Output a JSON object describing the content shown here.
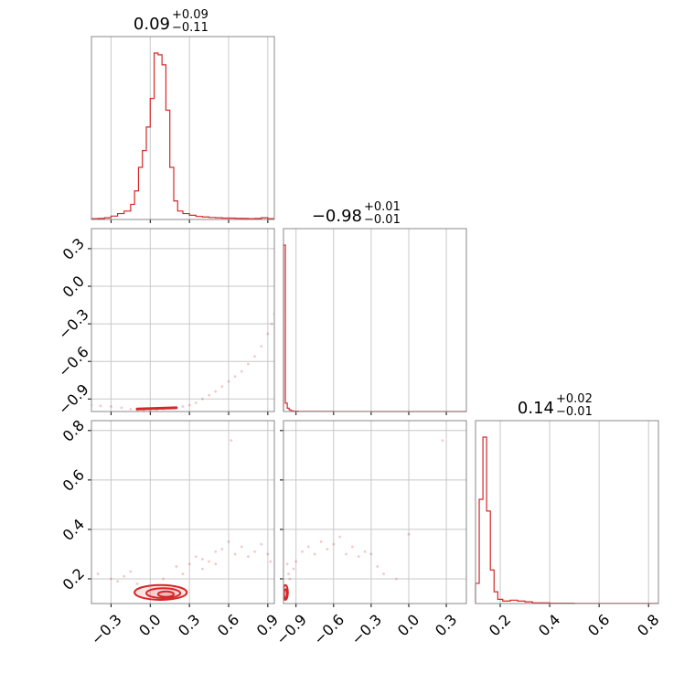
{
  "chart_data": {
    "type": "corner",
    "color": "#d62728",
    "grid": true,
    "parameters": [
      {
        "median": "0.09",
        "plus": "+0.09",
        "minus": "−0.11",
        "range": [
          -0.45,
          0.95
        ],
        "ticks": [
          -0.3,
          0.0,
          0.3,
          0.6,
          0.9
        ],
        "tick_labels": [
          "−0.3",
          "0.0",
          "0.3",
          "0.6",
          "0.9"
        ]
      },
      {
        "median": "−0.98",
        "plus": "+0.01",
        "minus": "−0.01",
        "range": [
          -1.0,
          0.46
        ],
        "ticks": [
          -0.9,
          -0.6,
          -0.3,
          0.0,
          0.3
        ],
        "tick_labels": [
          "−0.9",
          "−0.6",
          "−0.3",
          "0.0",
          "0.3"
        ]
      },
      {
        "median": "0.14",
        "plus": "+0.02",
        "minus": "−0.01",
        "range": [
          0.1,
          0.84
        ],
        "ticks": [
          0.2,
          0.4,
          0.6,
          0.8
        ],
        "tick_labels": [
          "0.2",
          "0.4",
          "0.6",
          "0.8"
        ]
      }
    ],
    "histograms": [
      {
        "param": 0,
        "bins": [
          -0.45,
          -0.4,
          -0.35,
          -0.3,
          -0.25,
          -0.2,
          -0.15,
          -0.12,
          -0.09,
          -0.06,
          -0.03,
          0.0,
          0.03,
          0.06,
          0.09,
          0.12,
          0.15,
          0.18,
          0.21,
          0.25,
          0.3,
          0.35,
          0.4,
          0.45,
          0.5,
          0.55,
          0.6,
          0.65,
          0.7,
          0.75,
          0.8,
          0.85,
          0.9,
          0.95
        ],
        "counts": [
          0.5,
          0.6,
          1.0,
          2.0,
          3.5,
          5.0,
          9.0,
          17.0,
          31.0,
          41.0,
          55.0,
          72.0,
          99.0,
          98.0,
          92.0,
          65.0,
          31.0,
          11.0,
          5.0,
          3.5,
          2.5,
          1.8,
          1.5,
          1.2,
          1.0,
          0.8,
          0.8,
          0.7,
          0.6,
          0.5,
          0.6,
          1.0,
          0.5
        ]
      },
      {
        "param": 1,
        "bins": [
          -1.0,
          -0.985,
          -0.97,
          -0.955,
          -0.94,
          -0.92,
          -0.88,
          -0.8,
          -0.6,
          -0.3,
          0.0,
          0.46
        ],
        "counts": [
          100,
          5,
          2,
          1,
          0.4,
          0.2,
          0.1,
          0.05,
          0.03,
          0.02,
          0.02
        ]
      },
      {
        "param": 2,
        "bins": [
          0.1,
          0.115,
          0.13,
          0.145,
          0.16,
          0.175,
          0.19,
          0.21,
          0.24,
          0.27,
          0.3,
          0.33,
          0.4,
          0.5,
          0.6,
          0.84
        ],
        "counts": [
          12,
          62,
          99,
          55,
          20,
          7,
          2.5,
          1.5,
          2.0,
          1.5,
          1.0,
          0.4,
          0.2,
          0.1,
          0.05
        ]
      }
    ],
    "scatter_panels": [
      {
        "x_param": 0,
        "y_param": 1,
        "description_free_points": [
          [
            -0.45,
            -0.95
          ],
          [
            -0.38,
            -0.955
          ],
          [
            -0.3,
            -0.96
          ],
          [
            -0.22,
            -0.97
          ],
          [
            -0.15,
            -0.98
          ],
          [
            -0.1,
            -0.985
          ],
          [
            -0.05,
            -0.99
          ],
          [
            0.0,
            -0.99
          ],
          [
            0.05,
            -0.985
          ],
          [
            0.1,
            -0.98
          ],
          [
            0.15,
            -0.975
          ],
          [
            0.2,
            -0.97
          ],
          [
            0.25,
            -0.96
          ],
          [
            0.3,
            -0.95
          ],
          [
            0.35,
            -0.93
          ],
          [
            0.4,
            -0.9
          ],
          [
            0.45,
            -0.87
          ],
          [
            0.5,
            -0.84
          ],
          [
            0.55,
            -0.8
          ],
          [
            0.6,
            -0.76
          ],
          [
            0.65,
            -0.72
          ],
          [
            0.7,
            -0.68
          ],
          [
            0.75,
            -0.62
          ],
          [
            0.8,
            -0.56
          ],
          [
            0.85,
            -0.48
          ],
          [
            0.9,
            -0.38
          ],
          [
            0.93,
            -0.3
          ],
          [
            0.95,
            -0.22
          ]
        ],
        "core_segment": [
          [
            -0.1,
            -0.98
          ],
          [
            0.2,
            -0.97
          ]
        ]
      },
      {
        "x_param": 0,
        "y_param": 2,
        "contours": [
          {
            "center": [
              0.08,
              0.145
            ],
            "rx": 0.2,
            "ry": 0.03
          },
          {
            "center": [
              0.1,
              0.142
            ],
            "rx": 0.13,
            "ry": 0.02
          },
          {
            "center": [
              0.12,
              0.138
            ],
            "rx": 0.06,
            "ry": 0.011
          }
        ],
        "scatter": [
          [
            -0.4,
            0.22
          ],
          [
            -0.3,
            0.2
          ],
          [
            -0.25,
            0.19
          ],
          [
            -0.2,
            0.21
          ],
          [
            -0.15,
            0.23
          ],
          [
            -0.1,
            0.18
          ],
          [
            0.2,
            0.25
          ],
          [
            0.25,
            0.22
          ],
          [
            0.3,
            0.26
          ],
          [
            0.35,
            0.29
          ],
          [
            0.4,
            0.28
          ],
          [
            0.45,
            0.27
          ],
          [
            0.5,
            0.31
          ],
          [
            0.55,
            0.32
          ],
          [
            0.6,
            0.35
          ],
          [
            0.65,
            0.3
          ],
          [
            0.7,
            0.33
          ],
          [
            0.75,
            0.29
          ],
          [
            0.8,
            0.31
          ],
          [
            0.85,
            0.34
          ],
          [
            0.9,
            0.3
          ],
          [
            0.92,
            0.27
          ],
          [
            0.62,
            0.76
          ],
          [
            0.4,
            0.24
          ],
          [
            0.1,
            0.2
          ],
          [
            0.5,
            0.26
          ]
        ]
      },
      {
        "x_param": 1,
        "y_param": 2,
        "contours": [
          {
            "center": [
              -0.985,
              0.145
            ],
            "rx": 0.02,
            "ry": 0.03
          },
          {
            "center": [
              -0.985,
              0.14
            ],
            "rx": 0.012,
            "ry": 0.018
          }
        ],
        "scatter": [
          [
            -0.95,
            0.2
          ],
          [
            -0.92,
            0.24
          ],
          [
            -0.9,
            0.27
          ],
          [
            -0.85,
            0.31
          ],
          [
            -0.8,
            0.33
          ],
          [
            -0.75,
            0.3
          ],
          [
            -0.7,
            0.35
          ],
          [
            -0.65,
            0.32
          ],
          [
            -0.6,
            0.34
          ],
          [
            -0.55,
            0.37
          ],
          [
            -0.5,
            0.3
          ],
          [
            -0.45,
            0.33
          ],
          [
            -0.4,
            0.29
          ],
          [
            -0.35,
            0.31
          ],
          [
            -0.3,
            0.3
          ],
          [
            -0.25,
            0.25
          ],
          [
            -0.2,
            0.22
          ],
          [
            -0.1,
            0.2
          ],
          [
            0.0,
            0.38
          ],
          [
            0.27,
            0.76
          ],
          [
            -0.97,
            0.26
          ],
          [
            -0.96,
            0.22
          ]
        ]
      }
    ]
  }
}
